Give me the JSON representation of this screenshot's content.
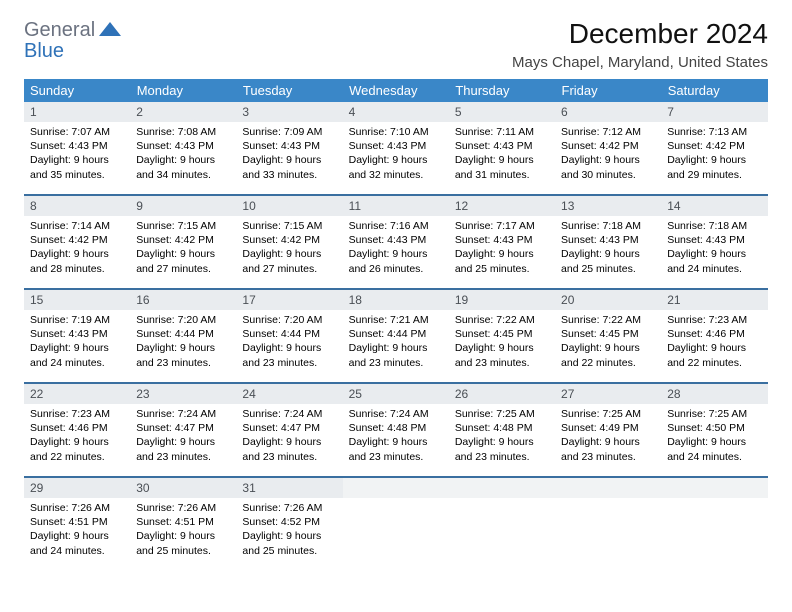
{
  "logo": {
    "general": "General",
    "blue": "Blue"
  },
  "title": "December 2024",
  "location": "Mays Chapel, Maryland, United States",
  "colors": {
    "header_bg": "#3a87c8",
    "header_text": "#ffffff",
    "daynum_bg": "#e9ecef",
    "border": "#3a6fa0",
    "logo_gray": "#6b7280",
    "logo_blue": "#2f72b8"
  },
  "dayHeaders": [
    "Sunday",
    "Monday",
    "Tuesday",
    "Wednesday",
    "Thursday",
    "Friday",
    "Saturday"
  ],
  "weeks": [
    [
      {
        "n": "1",
        "sr": "7:07 AM",
        "ss": "4:43 PM",
        "dl": "9 hours and 35 minutes."
      },
      {
        "n": "2",
        "sr": "7:08 AM",
        "ss": "4:43 PM",
        "dl": "9 hours and 34 minutes."
      },
      {
        "n": "3",
        "sr": "7:09 AM",
        "ss": "4:43 PM",
        "dl": "9 hours and 33 minutes."
      },
      {
        "n": "4",
        "sr": "7:10 AM",
        "ss": "4:43 PM",
        "dl": "9 hours and 32 minutes."
      },
      {
        "n": "5",
        "sr": "7:11 AM",
        "ss": "4:43 PM",
        "dl": "9 hours and 31 minutes."
      },
      {
        "n": "6",
        "sr": "7:12 AM",
        "ss": "4:42 PM",
        "dl": "9 hours and 30 minutes."
      },
      {
        "n": "7",
        "sr": "7:13 AM",
        "ss": "4:42 PM",
        "dl": "9 hours and 29 minutes."
      }
    ],
    [
      {
        "n": "8",
        "sr": "7:14 AM",
        "ss": "4:42 PM",
        "dl": "9 hours and 28 minutes."
      },
      {
        "n": "9",
        "sr": "7:15 AM",
        "ss": "4:42 PM",
        "dl": "9 hours and 27 minutes."
      },
      {
        "n": "10",
        "sr": "7:15 AM",
        "ss": "4:42 PM",
        "dl": "9 hours and 27 minutes."
      },
      {
        "n": "11",
        "sr": "7:16 AM",
        "ss": "4:43 PM",
        "dl": "9 hours and 26 minutes."
      },
      {
        "n": "12",
        "sr": "7:17 AM",
        "ss": "4:43 PM",
        "dl": "9 hours and 25 minutes."
      },
      {
        "n": "13",
        "sr": "7:18 AM",
        "ss": "4:43 PM",
        "dl": "9 hours and 25 minutes."
      },
      {
        "n": "14",
        "sr": "7:18 AM",
        "ss": "4:43 PM",
        "dl": "9 hours and 24 minutes."
      }
    ],
    [
      {
        "n": "15",
        "sr": "7:19 AM",
        "ss": "4:43 PM",
        "dl": "9 hours and 24 minutes."
      },
      {
        "n": "16",
        "sr": "7:20 AM",
        "ss": "4:44 PM",
        "dl": "9 hours and 23 minutes."
      },
      {
        "n": "17",
        "sr": "7:20 AM",
        "ss": "4:44 PM",
        "dl": "9 hours and 23 minutes."
      },
      {
        "n": "18",
        "sr": "7:21 AM",
        "ss": "4:44 PM",
        "dl": "9 hours and 23 minutes."
      },
      {
        "n": "19",
        "sr": "7:22 AM",
        "ss": "4:45 PM",
        "dl": "9 hours and 23 minutes."
      },
      {
        "n": "20",
        "sr": "7:22 AM",
        "ss": "4:45 PM",
        "dl": "9 hours and 22 minutes."
      },
      {
        "n": "21",
        "sr": "7:23 AM",
        "ss": "4:46 PM",
        "dl": "9 hours and 22 minutes."
      }
    ],
    [
      {
        "n": "22",
        "sr": "7:23 AM",
        "ss": "4:46 PM",
        "dl": "9 hours and 22 minutes."
      },
      {
        "n": "23",
        "sr": "7:24 AM",
        "ss": "4:47 PM",
        "dl": "9 hours and 23 minutes."
      },
      {
        "n": "24",
        "sr": "7:24 AM",
        "ss": "4:47 PM",
        "dl": "9 hours and 23 minutes."
      },
      {
        "n": "25",
        "sr": "7:24 AM",
        "ss": "4:48 PM",
        "dl": "9 hours and 23 minutes."
      },
      {
        "n": "26",
        "sr": "7:25 AM",
        "ss": "4:48 PM",
        "dl": "9 hours and 23 minutes."
      },
      {
        "n": "27",
        "sr": "7:25 AM",
        "ss": "4:49 PM",
        "dl": "9 hours and 23 minutes."
      },
      {
        "n": "28",
        "sr": "7:25 AM",
        "ss": "4:50 PM",
        "dl": "9 hours and 24 minutes."
      }
    ],
    [
      {
        "n": "29",
        "sr": "7:26 AM",
        "ss": "4:51 PM",
        "dl": "9 hours and 24 minutes."
      },
      {
        "n": "30",
        "sr": "7:26 AM",
        "ss": "4:51 PM",
        "dl": "9 hours and 25 minutes."
      },
      {
        "n": "31",
        "sr": "7:26 AM",
        "ss": "4:52 PM",
        "dl": "9 hours and 25 minutes."
      },
      null,
      null,
      null,
      null
    ]
  ],
  "labels": {
    "sunrise": "Sunrise:",
    "sunset": "Sunset:",
    "daylight": "Daylight:"
  }
}
